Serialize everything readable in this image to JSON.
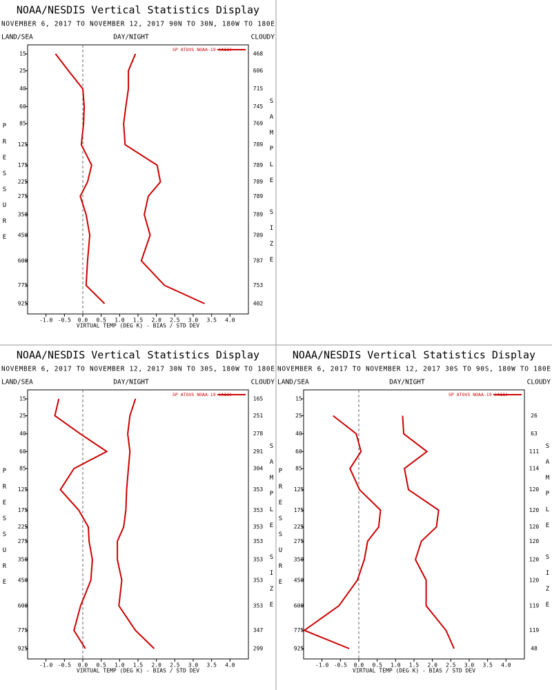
{
  "chart_data": [
    {
      "type": "line",
      "title": "NOAA/NESDIS Vertical Statistics Display",
      "subtitle": "NOVEMBER 6, 2017 TO NOVEMBER 12, 2017 90N TO 30N, 180W TO 180E",
      "left_label": "LAND/SEA",
      "center_label": "DAY/NIGHT",
      "right_label": "CLOUDY",
      "ylabel": "PRESSURE",
      "y2label": "SAMPLE SIZE",
      "xlabel": "VIRTUAL TEMP (DEG K) - BIAS / STD DEV",
      "legend": "SP ATOVS NOAA-19 (A11)",
      "categories": [
        15,
        25,
        40,
        60,
        85,
        125,
        175,
        225,
        275,
        350,
        450,
        600,
        775,
        925
      ],
      "sample_size": [
        468,
        606,
        715,
        745,
        769,
        789,
        789,
        789,
        789,
        789,
        789,
        787,
        753,
        402
      ],
      "series": [
        {
          "color": "#cc0000",
          "values": [
            -0.74,
            -0.39,
            0.0,
            0.04,
            0.02,
            -0.04,
            0.24,
            0.13,
            -0.07,
            0.09,
            0.19,
            0.13,
            0.09,
            0.59
          ]
        },
        {
          "color": "#cc0000",
          "values": [
            1.43,
            1.24,
            1.24,
            1.17,
            1.11,
            1.15,
            2.02,
            2.11,
            1.78,
            1.67,
            1.83,
            1.59,
            2.22,
            3.31
          ]
        }
      ],
      "xlim": [
        -1.5,
        4.5
      ],
      "xticks": [
        {
          "value": -1,
          "label": "-1.0"
        },
        -0.5,
        {
          "value": 0,
          "label": "0.0"
        },
        0.5,
        {
          "value": 1,
          "label": "1.0"
        },
        1.5,
        {
          "value": 2,
          "label": "2.0"
        },
        2.5,
        {
          "value": 3,
          "label": "3.0"
        },
        3.5,
        {
          "value": 4,
          "label": "4.0"
        }
      ]
    },
    {
      "type": "line",
      "title": "NOAA/NESDIS Vertical Statistics Display",
      "subtitle": "NOVEMBER 6, 2017 TO NOVEMBER 12, 2017 30N TO 30S, 180W TO 180E",
      "left_label": "LAND/SEA",
      "center_label": "DAY/NIGHT",
      "right_label": "CLOUDY",
      "ylabel": "PRESSURE",
      "y2label": "SAMPLE SIZE",
      "xlabel": "VIRTUAL TEMP (DEG K) - BIAS / STD DEV",
      "legend": "SP ATOVS NOAA-19 (A11)",
      "categories": [
        15,
        25,
        40,
        60,
        85,
        125,
        175,
        225,
        275,
        350,
        450,
        600,
        775,
        925
      ],
      "sample_size": [
        165,
        251,
        278,
        291,
        304,
        353,
        353,
        353,
        353,
        353,
        353,
        353,
        347,
        299
      ],
      "series": [
        {
          "color": "#cc0000",
          "values": [
            -0.65,
            -0.76,
            -0.07,
            0.65,
            -0.24,
            -0.61,
            -0.11,
            0.15,
            0.17,
            0.26,
            0.22,
            -0.06,
            -0.24,
            0.07
          ]
        },
        {
          "color": "#cc0000",
          "values": [
            1.43,
            1.28,
            1.22,
            1.28,
            1.24,
            1.19,
            1.17,
            1.11,
            0.94,
            0.94,
            1.06,
            0.98,
            1.43,
            1.94
          ]
        }
      ],
      "xlim": [
        -1.5,
        4.5
      ],
      "xticks": [
        {
          "value": -1,
          "label": "-1.0"
        },
        -0.5,
        {
          "value": 0,
          "label": "0.0"
        },
        0.5,
        {
          "value": 1,
          "label": "1.0"
        },
        1.5,
        {
          "value": 2,
          "label": "2.0"
        },
        2.5,
        {
          "value": 3,
          "label": "3.0"
        },
        3.5,
        {
          "value": 4,
          "label": "4.0"
        }
      ]
    },
    {
      "type": "line",
      "title": "NOAA/NESDIS Vertical Statistics Display",
      "subtitle": "NOVEMBER 6, 2017 TO NOVEMBER 12, 2017 30S TO 90S, 180W TO 180E",
      "left_label": "LAND/SEA",
      "center_label": "DAY/NIGHT",
      "right_label": "CLOUDY",
      "ylabel": "PRESSURE",
      "y2label": "SAMPLE SIZE",
      "xlabel": "VIRTUAL TEMP (DEG K) - BIAS / STD DEV",
      "legend": "SP ATOVS NOAA-19 (A11)",
      "categories": [
        15,
        25,
        40,
        60,
        85,
        125,
        175,
        225,
        275,
        350,
        450,
        600,
        775,
        925
      ],
      "sample_size": [
        null,
        26,
        63,
        111,
        114,
        120,
        120,
        120,
        120,
        120,
        120,
        119,
        119,
        48
      ],
      "series": [
        {
          "color": "#cc0000",
          "values": [
            null,
            -0.7,
            -0.07,
            0.06,
            -0.24,
            0.02,
            0.59,
            0.54,
            0.24,
            0.15,
            -0.04,
            -0.54,
            -1.48,
            -0.26
          ]
        },
        {
          "color": "#cc0000",
          "values": [
            null,
            1.19,
            1.22,
            1.85,
            1.24,
            1.35,
            2.17,
            2.11,
            1.7,
            1.54,
            1.83,
            1.83,
            2.37,
            2.59
          ]
        }
      ],
      "xlim": [
        -1.5,
        4.5
      ],
      "xticks": [
        {
          "value": -1,
          "label": "-1.0"
        },
        -0.5,
        {
          "value": 0,
          "label": "0.0"
        },
        0.5,
        {
          "value": 1,
          "label": "1.0"
        },
        1.5,
        {
          "value": 2,
          "label": "2.0"
        },
        2.5,
        {
          "value": 3,
          "label": "3.0"
        },
        3.5,
        {
          "value": 4,
          "label": "4.0"
        }
      ]
    }
  ]
}
